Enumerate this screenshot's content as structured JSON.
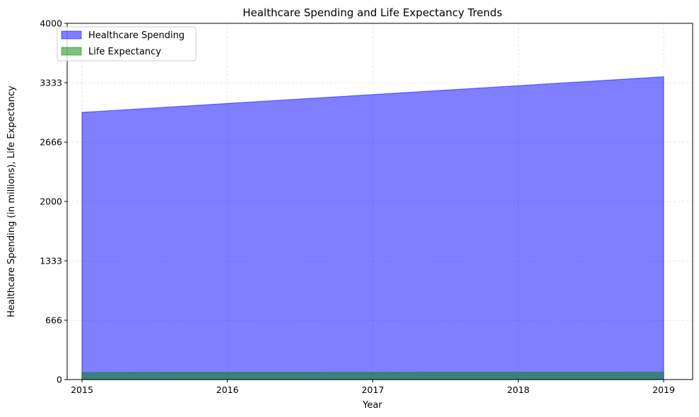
{
  "chart_data": {
    "type": "area",
    "title": "Healthcare Spending and Life Expectancy Trends",
    "xlabel": "Year",
    "ylabel": "Healthcare Spending (in millions), Life Expectancy",
    "x": [
      2015,
      2016,
      2017,
      2018,
      2019
    ],
    "xticks": [
      "2015",
      "2016",
      "2017",
      "2018",
      "2019"
    ],
    "yticks": [
      "0",
      "666",
      "1333",
      "2000",
      "2666",
      "3333",
      "4000"
    ],
    "ylim": [
      0,
      4000
    ],
    "grid": true,
    "legend_position": "top-left",
    "series": [
      {
        "name": "Healthcare Spending",
        "values": [
          3000,
          3100,
          3200,
          3300,
          3400
        ],
        "color": "#0000ff",
        "alpha": 0.5
      },
      {
        "name": "Life Expectancy",
        "values": [
          79,
          79.5,
          80,
          80.5,
          81
        ],
        "color": "#008000",
        "alpha": 0.5
      }
    ]
  }
}
